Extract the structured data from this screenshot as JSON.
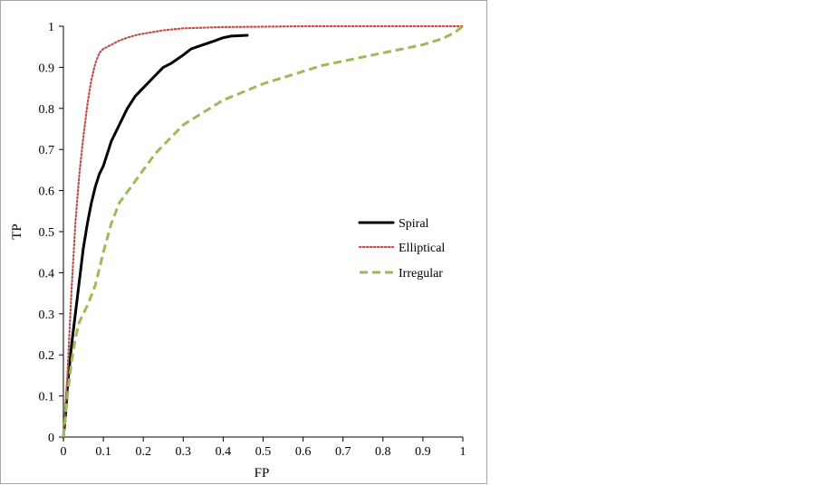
{
  "chart_data": {
    "type": "line",
    "title": "",
    "xlabel": "FP",
    "ylabel": "TP",
    "xlim": [
      0,
      1
    ],
    "ylim": [
      0,
      1
    ],
    "x_ticks": [
      "0",
      "0.1",
      "0.2",
      "0.3",
      "0.4",
      "0.5",
      "0.6",
      "0.7",
      "0.8",
      "0.9",
      "1"
    ],
    "y_ticks": [
      "0",
      "0.1",
      "0.2",
      "0.3",
      "0.4",
      "0.5",
      "0.6",
      "0.7",
      "0.8",
      "0.9",
      "1"
    ],
    "grid": false,
    "legend_position": "right",
    "series": [
      {
        "name": "Spiral",
        "color": "#000000",
        "style": "solid",
        "x": [
          0.0,
          0.005,
          0.01,
          0.02,
          0.03,
          0.04,
          0.05,
          0.06,
          0.07,
          0.08,
          0.09,
          0.1,
          0.12,
          0.14,
          0.16,
          0.18,
          0.2,
          0.22,
          0.24,
          0.25,
          0.27,
          0.3,
          0.32,
          0.35,
          0.38,
          0.4,
          0.42,
          0.46
        ],
        "y": [
          0.0,
          0.05,
          0.12,
          0.22,
          0.3,
          0.38,
          0.46,
          0.52,
          0.57,
          0.61,
          0.64,
          0.66,
          0.72,
          0.76,
          0.8,
          0.83,
          0.85,
          0.87,
          0.89,
          0.9,
          0.91,
          0.93,
          0.945,
          0.955,
          0.965,
          0.972,
          0.976,
          0.978
        ]
      },
      {
        "name": "Elliptical",
        "color": "#c0504d",
        "style": "dotted",
        "x": [
          0.0,
          0.01,
          0.02,
          0.03,
          0.04,
          0.05,
          0.06,
          0.07,
          0.08,
          0.09,
          0.1,
          0.12,
          0.14,
          0.16,
          0.18,
          0.2,
          0.25,
          0.3,
          0.4,
          0.5,
          0.6,
          0.8,
          1.0
        ],
        "y": [
          0.0,
          0.15,
          0.35,
          0.52,
          0.64,
          0.73,
          0.81,
          0.87,
          0.91,
          0.935,
          0.945,
          0.955,
          0.965,
          0.972,
          0.978,
          0.982,
          0.99,
          0.995,
          0.998,
          0.999,
          1.0,
          1.0,
          1.0
        ]
      },
      {
        "name": "Irregular",
        "color": "#9bbb59",
        "style": "dashed",
        "x": [
          0.0,
          0.01,
          0.02,
          0.03,
          0.04,
          0.05,
          0.06,
          0.08,
          0.1,
          0.12,
          0.14,
          0.17,
          0.2,
          0.23,
          0.26,
          0.3,
          0.35,
          0.4,
          0.45,
          0.5,
          0.55,
          0.6,
          0.65,
          0.7,
          0.75,
          0.8,
          0.85,
          0.9,
          0.95,
          0.98,
          1.0
        ],
        "y": [
          0.0,
          0.1,
          0.18,
          0.24,
          0.28,
          0.3,
          0.32,
          0.37,
          0.45,
          0.52,
          0.57,
          0.61,
          0.65,
          0.69,
          0.72,
          0.76,
          0.79,
          0.82,
          0.84,
          0.86,
          0.875,
          0.89,
          0.905,
          0.915,
          0.925,
          0.935,
          0.945,
          0.955,
          0.97,
          0.985,
          1.0
        ]
      }
    ]
  },
  "colors": {
    "axis": "#000000",
    "frame": "#999999"
  }
}
